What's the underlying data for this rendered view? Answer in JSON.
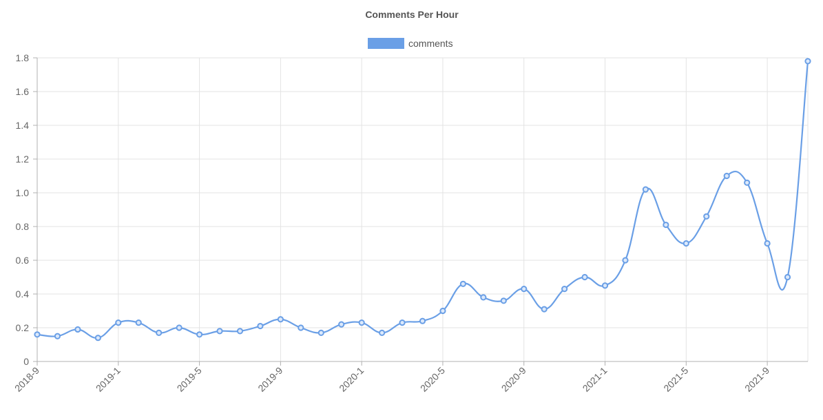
{
  "chart_data": {
    "type": "line",
    "title": "Comments Per Hour",
    "legend": {
      "position": "top",
      "entries": [
        "comments"
      ]
    },
    "grid": true,
    "xlabel": "",
    "ylabel": "",
    "ylim": [
      0,
      1.8
    ],
    "y_ticks": [
      "0",
      "0.2",
      "0.4",
      "0.6",
      "0.8",
      "1.0",
      "1.2",
      "1.4",
      "1.6",
      "1.8"
    ],
    "x_tick_labels": [
      "2018-9",
      "2019-1",
      "2019-5",
      "2019-9",
      "2020-1",
      "2020-5",
      "2020-9",
      "2021-1",
      "2021-5",
      "2021-9"
    ],
    "x": [
      "2018-9",
      "2018-10",
      "2018-11",
      "2018-12",
      "2019-1",
      "2019-2",
      "2019-3",
      "2019-4",
      "2019-5",
      "2019-6",
      "2019-7",
      "2019-8",
      "2019-9",
      "2019-10",
      "2019-11",
      "2019-12",
      "2020-1",
      "2020-2",
      "2020-3",
      "2020-4",
      "2020-5",
      "2020-6",
      "2020-7",
      "2020-8",
      "2020-9",
      "2020-10",
      "2020-11",
      "2020-12",
      "2021-1",
      "2021-2",
      "2021-3",
      "2021-4",
      "2021-5",
      "2021-6",
      "2021-7",
      "2021-8",
      "2021-9",
      "2021-10",
      "2021-11"
    ],
    "series": [
      {
        "name": "comments",
        "color": "#6a9fe6",
        "values": [
          0.16,
          0.15,
          0.19,
          0.14,
          0.23,
          0.23,
          0.17,
          0.2,
          0.16,
          0.18,
          0.18,
          0.21,
          0.25,
          0.2,
          0.17,
          0.22,
          0.23,
          0.17,
          0.23,
          0.24,
          0.3,
          0.46,
          0.38,
          0.36,
          0.43,
          0.31,
          0.43,
          0.5,
          0.45,
          0.6,
          1.02,
          0.81,
          0.7,
          0.86,
          1.1,
          1.06,
          0.7,
          0.5,
          1.78
        ]
      }
    ]
  }
}
